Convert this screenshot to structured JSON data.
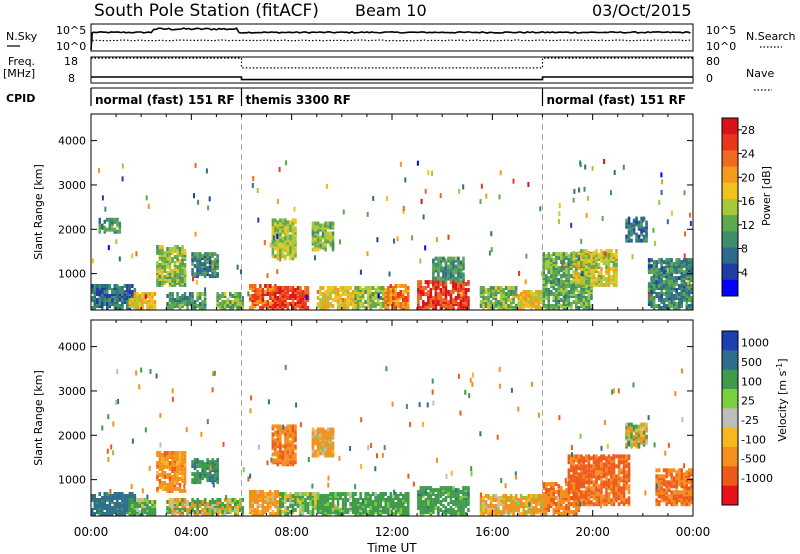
{
  "header": {
    "station": "South Pole Station (fitACF)",
    "beam": "Beam 10",
    "date": "03/Oct/2015"
  },
  "params": {
    "nsky_label": "N.Sky",
    "nsearch_label": "N.Search",
    "freq_label": "Freq.",
    "freq_unit": "[MHz]",
    "nave_label": "Nave",
    "cpid_label": "CPID",
    "nsky_ticks": [
      "10^5",
      "10^0"
    ],
    "nsearch_ticks": [
      "10^5",
      "10^0"
    ],
    "freq_ticks": [
      "18",
      "8"
    ],
    "nave_ticks": [
      "80",
      "0"
    ],
    "freq_series": [
      {
        "t0": 0,
        "t1": 6,
        "v": 13.0
      },
      {
        "t0": 6,
        "t1": 18,
        "v": 12.0
      },
      {
        "t0": 18,
        "t1": 24,
        "v": 13.0
      }
    ],
    "nave_series": [
      {
        "t0": 0,
        "t1": 6,
        "v": 55
      },
      {
        "t0": 6,
        "t1": 18,
        "v": 25
      },
      {
        "t0": 18,
        "t1": 24,
        "v": 55
      }
    ],
    "cpid_segments": [
      {
        "start": 0,
        "end": 6,
        "label": "normal (fast) 151 RF"
      },
      {
        "start": 6,
        "end": 18,
        "label": "themis 3300 RF"
      },
      {
        "start": 18,
        "end": 24,
        "label": "normal (fast) 151 RF"
      }
    ]
  },
  "axes": {
    "xlabel": "Time UT",
    "xticks": [
      "00:00",
      "04:00",
      "08:00",
      "12:00",
      "16:00",
      "20:00",
      "00:00"
    ],
    "ylabel": "Slant Range [km]",
    "yticks": [
      "1000",
      "2000",
      "3000",
      "4000"
    ]
  },
  "colors": {
    "power": [
      "#0000ff",
      "#1e3fa0",
      "#2e6a8c",
      "#3f8e6a",
      "#5fa84c",
      "#a6c93a",
      "#f2c31c",
      "#f59a1e",
      "#ef6a1e",
      "#e8381c",
      "#d9121c"
    ],
    "velocity": [
      "#e8121c",
      "#ef5a1c",
      "#f3901e",
      "#f7b81e",
      "#bdbdbd",
      "#7ccf3c",
      "#3f9a4a",
      "#2f6f8c",
      "#1e3fb0"
    ]
  },
  "chart_data": [
    {
      "type": "heatmap",
      "name_printed": "Power [dB]",
      "xlabel": "Time UT",
      "ylabel": "Slant Range [km]",
      "xlim": [
        0,
        24
      ],
      "ylim": [
        180,
        4600
      ],
      "colorbar_label": "Power [dB]",
      "colorbar_ticks": [
        "4",
        "8",
        "12",
        "16",
        "20",
        "24",
        "28"
      ],
      "colorbar_range": [
        0,
        30
      ],
      "mode_boundaries_hours": [
        6,
        18
      ],
      "regions": [
        {
          "t0": 0.0,
          "t1": 1.8,
          "r0": 180,
          "r1": 700,
          "value": 7
        },
        {
          "t0": 0.3,
          "t1": 1.2,
          "r0": 1900,
          "r1": 2200,
          "value": 10
        },
        {
          "t0": 1.5,
          "t1": 2.6,
          "r0": 180,
          "r1": 500,
          "value": 18
        },
        {
          "t0": 2.6,
          "t1": 3.8,
          "r0": 700,
          "r1": 1600,
          "value": 14
        },
        {
          "t0": 3.0,
          "t1": 4.5,
          "r0": 180,
          "r1": 500,
          "value": 10
        },
        {
          "t0": 4.0,
          "t1": 5.0,
          "r0": 900,
          "r1": 1400,
          "value": 9
        },
        {
          "t0": 5.0,
          "t1": 6.0,
          "r0": 180,
          "r1": 500,
          "value": 13
        },
        {
          "t0": 6.3,
          "t1": 7.3,
          "r0": 180,
          "r1": 700,
          "value": 24
        },
        {
          "t0": 7.2,
          "t1": 8.1,
          "r0": 1300,
          "r1": 2200,
          "value": 15
        },
        {
          "t0": 7.3,
          "t1": 8.6,
          "r0": 180,
          "r1": 650,
          "value": 26
        },
        {
          "t0": 8.8,
          "t1": 9.6,
          "r0": 1500,
          "r1": 2100,
          "value": 14
        },
        {
          "t0": 9.0,
          "t1": 10.5,
          "r0": 180,
          "r1": 650,
          "value": 18
        },
        {
          "t0": 10.5,
          "t1": 11.7,
          "r0": 180,
          "r1": 650,
          "value": 14
        },
        {
          "t0": 11.7,
          "t1": 12.6,
          "r0": 180,
          "r1": 700,
          "value": 22
        },
        {
          "t0": 13.0,
          "t1": 15.0,
          "r0": 180,
          "r1": 800,
          "value": 26
        },
        {
          "t0": 13.6,
          "t1": 14.8,
          "r0": 800,
          "r1": 1300,
          "value": 10
        },
        {
          "t0": 15.5,
          "t1": 17.0,
          "r0": 180,
          "r1": 650,
          "value": 13
        },
        {
          "t0": 17.0,
          "t1": 18.0,
          "r0": 180,
          "r1": 550,
          "value": 18
        },
        {
          "t0": 18.0,
          "t1": 20.0,
          "r0": 180,
          "r1": 1400,
          "value": 12
        },
        {
          "t0": 19.2,
          "t1": 21.0,
          "r0": 700,
          "r1": 1500,
          "value": 16
        },
        {
          "t0": 21.3,
          "t1": 22.2,
          "r0": 1700,
          "r1": 2200,
          "value": 8
        },
        {
          "t0": 22.2,
          "t1": 24.0,
          "r0": 180,
          "r1": 1300,
          "value": 9
        }
      ]
    },
    {
      "type": "heatmap",
      "xlabel": "Time UT",
      "ylabel": "Slant Range [km]",
      "xlim": [
        0,
        24
      ],
      "ylim": [
        180,
        4600
      ],
      "colorbar_label": "Velocity [m s^-1]",
      "colorbar_ticks": [
        "1000",
        "500",
        "100",
        "25",
        "-25",
        "-100",
        "-500",
        "-1000"
      ],
      "colorbar_range": [
        -1000,
        1000
      ],
      "regions": [
        {
          "t0": 0.0,
          "t1": 1.8,
          "r0": 180,
          "r1": 650,
          "value": 700
        },
        {
          "t0": 1.5,
          "t1": 2.6,
          "r0": 180,
          "r1": 500,
          "value": 200
        },
        {
          "t0": 2.6,
          "t1": 3.8,
          "r0": 700,
          "r1": 1600,
          "value": -300
        },
        {
          "t0": 3.0,
          "t1": 6.0,
          "r0": 180,
          "r1": 500,
          "value": 0
        },
        {
          "t0": 4.0,
          "t1": 5.0,
          "r0": 900,
          "r1": 1400,
          "value": 400
        },
        {
          "t0": 6.3,
          "t1": 7.5,
          "r0": 180,
          "r1": 700,
          "value": -250
        },
        {
          "t0": 7.2,
          "t1": 8.1,
          "r0": 1300,
          "r1": 2200,
          "value": -400
        },
        {
          "t0": 7.5,
          "t1": 9.0,
          "r0": 180,
          "r1": 650,
          "value": 150
        },
        {
          "t0": 8.8,
          "t1": 9.6,
          "r0": 1500,
          "r1": 2100,
          "value": -200
        },
        {
          "t0": 9.0,
          "t1": 12.6,
          "r0": 180,
          "r1": 650,
          "value": 250
        },
        {
          "t0": 13.0,
          "t1": 15.0,
          "r0": 180,
          "r1": 800,
          "value": 300
        },
        {
          "t0": 15.5,
          "t1": 18.0,
          "r0": 180,
          "r1": 600,
          "value": -150
        },
        {
          "t0": 18.0,
          "t1": 19.5,
          "r0": 180,
          "r1": 900,
          "value": -400
        },
        {
          "t0": 19.0,
          "t1": 21.5,
          "r0": 400,
          "r1": 1500,
          "value": -600
        },
        {
          "t0": 21.3,
          "t1": 22.2,
          "r0": 1700,
          "r1": 2200,
          "value": 0
        },
        {
          "t0": 22.5,
          "t1": 24.0,
          "r0": 400,
          "r1": 1200,
          "value": -500
        }
      ]
    }
  ]
}
